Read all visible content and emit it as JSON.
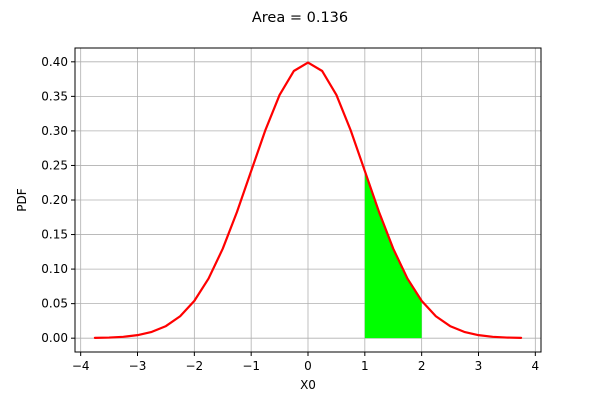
{
  "chart_data": {
    "type": "area",
    "title": "Area = 0.136",
    "xlabel": "X0",
    "ylabel": "PDF",
    "xlim": [
      -4.1,
      4.1
    ],
    "ylim": [
      -0.02,
      0.42
    ],
    "x_ticks": [
      -4,
      -3,
      -2,
      -1,
      0,
      1,
      2,
      3,
      4
    ],
    "x_tick_labels": [
      "−4",
      "−3",
      "−2",
      "−1",
      "0",
      "1",
      "2",
      "3",
      "4"
    ],
    "y_ticks": [
      0.0,
      0.05,
      0.1,
      0.15,
      0.2,
      0.25,
      0.3,
      0.35,
      0.4
    ],
    "y_tick_labels": [
      "0.00",
      "0.05",
      "0.10",
      "0.15",
      "0.20",
      "0.25",
      "0.30",
      "0.35",
      "0.40"
    ],
    "grid": true,
    "series": [
      {
        "type": "line",
        "color": "#ff0000",
        "x": [
          -3.75,
          -3.5,
          -3.25,
          -3.0,
          -2.75,
          -2.5,
          -2.25,
          -2.0,
          -1.75,
          -1.5,
          -1.25,
          -1.0,
          -0.75,
          -0.5,
          -0.25,
          0.0,
          0.25,
          0.5,
          0.75,
          1.0,
          1.25,
          1.5,
          1.75,
          2.0,
          2.25,
          2.5,
          2.75,
          3.0,
          3.25,
          3.5,
          3.75
        ],
        "y": [
          0.0004,
          0.0009,
          0.002,
          0.0044,
          0.0091,
          0.0175,
          0.0317,
          0.054,
          0.0863,
          0.1295,
          0.1826,
          0.242,
          0.3011,
          0.3521,
          0.3867,
          0.3989,
          0.3867,
          0.3521,
          0.3011,
          0.242,
          0.1826,
          0.1295,
          0.0863,
          0.054,
          0.0317,
          0.0175,
          0.0091,
          0.0044,
          0.002,
          0.0009,
          0.0004
        ]
      },
      {
        "type": "area",
        "color": "#00ff00",
        "x": [
          1.0,
          1.1,
          1.2,
          1.3,
          1.4,
          1.5,
          1.6,
          1.7,
          1.8,
          1.9,
          2.0
        ],
        "y": [
          0.242,
          0.2179,
          0.1942,
          0.1714,
          0.1497,
          0.1295,
          0.1109,
          0.094,
          0.079,
          0.0656,
          0.054
        ]
      }
    ]
  }
}
